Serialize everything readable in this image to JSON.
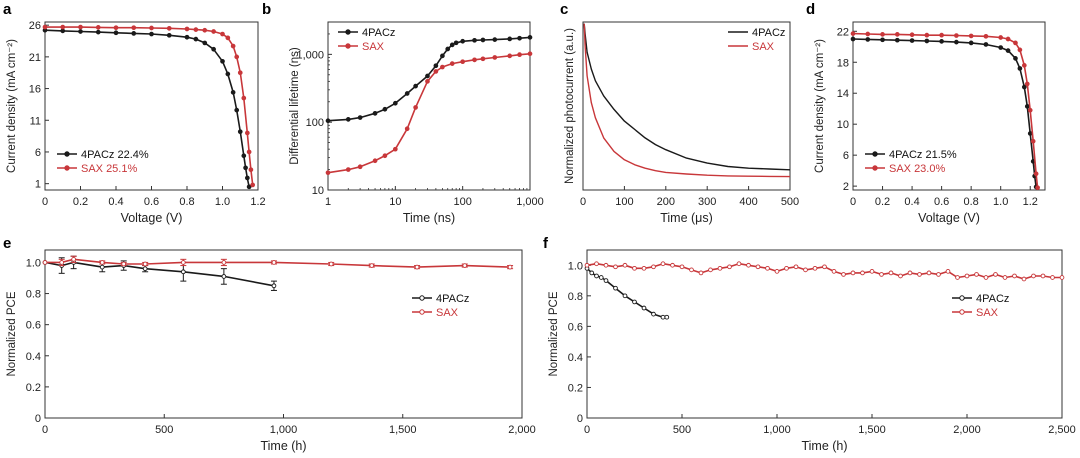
{
  "colors": {
    "black": "#1a1a1a",
    "red": "#c8373a",
    "axis": "#333333",
    "grid": "#888888"
  },
  "chart_data": [
    {
      "id": "a",
      "label": "a",
      "type": "line",
      "xlabel": "Voltage (V)",
      "ylabel": "Current density (mA cm⁻²)",
      "xlim": [
        0,
        1.2
      ],
      "ylim": [
        0,
        26.5
      ],
      "xticks": [
        {
          "v": 0,
          "t": "0"
        },
        {
          "v": 0.2,
          "t": "0.2"
        },
        {
          "v": 0.4,
          "t": "0.4"
        },
        {
          "v": 0.6,
          "t": "0.6"
        },
        {
          "v": 0.8,
          "t": "0.8"
        },
        {
          "v": 1.0,
          "t": "1.0"
        },
        {
          "v": 1.2,
          "t": "1.2"
        }
      ],
      "yticks": [
        {
          "v": 1,
          "t": "1"
        },
        {
          "v": 6,
          "t": "6"
        },
        {
          "v": 11,
          "t": "11"
        },
        {
          "v": 16,
          "t": "16"
        },
        {
          "v": 21,
          "t": "21"
        },
        {
          "v": 26,
          "t": "26"
        }
      ],
      "legend_pos": "bottom-left",
      "series": [
        {
          "name": "4PACz",
          "legend": "4PACz  22.4%",
          "color": "black",
          "x": [
            0,
            0.1,
            0.2,
            0.3,
            0.4,
            0.5,
            0.6,
            0.7,
            0.8,
            0.85,
            0.9,
            0.95,
            1.0,
            1.03,
            1.06,
            1.08,
            1.1,
            1.12,
            1.13,
            1.14,
            1.15
          ],
          "y": [
            25.2,
            25.1,
            25.0,
            24.9,
            24.8,
            24.7,
            24.6,
            24.4,
            24.1,
            23.8,
            23.2,
            22.2,
            20.3,
            18.3,
            15.4,
            12.6,
            9.2,
            5.4,
            3.5,
            1.9,
            0.5
          ]
        },
        {
          "name": "SAX",
          "legend": "SAX  25.1%",
          "color": "red",
          "x": [
            0,
            0.1,
            0.2,
            0.3,
            0.4,
            0.5,
            0.6,
            0.7,
            0.8,
            0.85,
            0.9,
            0.95,
            1.0,
            1.03,
            1.06,
            1.08,
            1.1,
            1.12,
            1.14,
            1.15,
            1.16,
            1.17
          ],
          "y": [
            25.7,
            25.7,
            25.7,
            25.65,
            25.6,
            25.6,
            25.55,
            25.5,
            25.4,
            25.3,
            25.2,
            25.0,
            24.6,
            24.0,
            22.7,
            21.0,
            18.5,
            14.5,
            9.0,
            6.0,
            3.2,
            0.8
          ]
        }
      ]
    },
    {
      "id": "b",
      "label": "b",
      "type": "line",
      "xlabel": "Time (ns)",
      "ylabel": "Differential lifetime (ns)",
      "xscale": "log",
      "yscale": "log",
      "xlim": [
        1,
        1000
      ],
      "ylim": [
        10,
        3000
      ],
      "xticks": [
        {
          "v": 1,
          "t": "1"
        },
        {
          "v": 10,
          "t": "10"
        },
        {
          "v": 100,
          "t": "100"
        },
        {
          "v": 1000,
          "t": "1,000"
        }
      ],
      "yticks": [
        {
          "v": 10,
          "t": "10"
        },
        {
          "v": 100,
          "t": "100"
        },
        {
          "v": 1000,
          "t": "1,000"
        }
      ],
      "legend_pos": "top-left",
      "series": [
        {
          "name": "4PACz",
          "legend": "4PACz",
          "color": "black",
          "x": [
            1,
            2,
            3,
            5,
            7,
            10,
            15,
            20,
            30,
            40,
            50,
            60,
            70,
            80,
            100,
            150,
            200,
            300,
            500,
            700,
            1000
          ],
          "y": [
            105,
            110,
            117,
            135,
            155,
            190,
            265,
            340,
            480,
            680,
            950,
            1200,
            1380,
            1480,
            1560,
            1610,
            1630,
            1650,
            1690,
            1730,
            1780
          ]
        },
        {
          "name": "SAX",
          "legend": "SAX",
          "color": "red",
          "x": [
            1,
            2,
            3,
            5,
            7,
            10,
            15,
            20,
            30,
            40,
            50,
            70,
            100,
            150,
            200,
            300,
            500,
            700,
            1000
          ],
          "y": [
            18,
            20,
            22,
            27,
            32,
            40,
            80,
            165,
            400,
            560,
            650,
            730,
            780,
            830,
            860,
            900,
            950,
            990,
            1020
          ]
        }
      ]
    },
    {
      "id": "c",
      "label": "c",
      "type": "line",
      "xlabel": "Time (μs)",
      "ylabel": "Normalized photocurrent (a.u.)",
      "xlim": [
        0,
        500
      ],
      "ylim": [
        0,
        1
      ],
      "xticks": [
        {
          "v": 0,
          "t": "0"
        },
        {
          "v": 100,
          "t": "100"
        },
        {
          "v": 200,
          "t": "200"
        },
        {
          "v": 300,
          "t": "300"
        },
        {
          "v": 400,
          "t": "400"
        },
        {
          "v": 500,
          "t": "500"
        }
      ],
      "yticks": [],
      "legend_pos": "top-right",
      "series": [
        {
          "name": "4PACz",
          "legend": "4PACz",
          "color": "black",
          "x": [
            3,
            5,
            10,
            20,
            30,
            50,
            75,
            100,
            125,
            150,
            175,
            200,
            250,
            300,
            350,
            400,
            450,
            500
          ],
          "y": [
            0.99,
            0.93,
            0.82,
            0.72,
            0.65,
            0.56,
            0.48,
            0.41,
            0.36,
            0.31,
            0.27,
            0.24,
            0.19,
            0.16,
            0.14,
            0.13,
            0.125,
            0.12
          ]
        },
        {
          "name": "SAX",
          "legend": "SAX",
          "color": "red",
          "x": [
            3,
            5,
            10,
            20,
            30,
            50,
            75,
            100,
            125,
            150,
            175,
            200,
            250,
            300,
            350,
            400,
            450,
            500
          ],
          "y": [
            0.99,
            0.86,
            0.68,
            0.52,
            0.43,
            0.31,
            0.23,
            0.18,
            0.15,
            0.13,
            0.115,
            0.105,
            0.095,
            0.088,
            0.084,
            0.082,
            0.081,
            0.08
          ]
        }
      ]
    },
    {
      "id": "d",
      "label": "d",
      "type": "line",
      "xlabel": "Voltage (V)",
      "ylabel": "Current density (mA cm⁻²)",
      "xlim": [
        0,
        1.3
      ],
      "ylim": [
        1.5,
        23.2
      ],
      "xticks": [
        {
          "v": 0,
          "t": "0"
        },
        {
          "v": 0.2,
          "t": "0.2"
        },
        {
          "v": 0.4,
          "t": "0.4"
        },
        {
          "v": 0.6,
          "t": "0.6"
        },
        {
          "v": 0.8,
          "t": "0.8"
        },
        {
          "v": 1.0,
          "t": "1.0"
        },
        {
          "v": 1.2,
          "t": "1.2"
        }
      ],
      "yticks": [
        {
          "v": 2,
          "t": "2"
        },
        {
          "v": 6,
          "t": "6"
        },
        {
          "v": 10,
          "t": "10"
        },
        {
          "v": 14,
          "t": "14"
        },
        {
          "v": 18,
          "t": "18"
        },
        {
          "v": 22,
          "t": "22"
        }
      ],
      "legend_pos": "bottom-left",
      "series": [
        {
          "name": "4PACz",
          "legend": "4PACz  21.5%",
          "color": "black",
          "x": [
            0,
            0.1,
            0.2,
            0.3,
            0.4,
            0.5,
            0.6,
            0.7,
            0.8,
            0.9,
            1.0,
            1.05,
            1.1,
            1.13,
            1.16,
            1.18,
            1.2,
            1.22,
            1.23,
            1.24
          ],
          "y": [
            21.0,
            20.95,
            20.9,
            20.85,
            20.8,
            20.75,
            20.7,
            20.6,
            20.5,
            20.3,
            19.9,
            19.5,
            18.5,
            17.2,
            14.8,
            12.3,
            8.8,
            5.2,
            3.3,
            1.9
          ]
        },
        {
          "name": "SAX",
          "legend": "SAX  23.0%",
          "color": "red",
          "x": [
            0,
            0.1,
            0.2,
            0.3,
            0.4,
            0.5,
            0.6,
            0.7,
            0.8,
            0.9,
            1.0,
            1.05,
            1.1,
            1.13,
            1.16,
            1.18,
            1.2,
            1.22,
            1.24,
            1.25
          ],
          "y": [
            21.7,
            21.65,
            21.6,
            21.6,
            21.55,
            21.5,
            21.5,
            21.45,
            21.4,
            21.35,
            21.2,
            21.0,
            20.5,
            19.6,
            17.6,
            15.2,
            11.8,
            7.8,
            3.6,
            1.8
          ]
        }
      ]
    },
    {
      "id": "e",
      "label": "e",
      "type": "line",
      "xlabel": "Time (h)",
      "ylabel": "Normalized PCE",
      "xlim": [
        0,
        2000
      ],
      "ylim": [
        0,
        1.08
      ],
      "xticks": [
        {
          "v": 0,
          "t": "0"
        },
        {
          "v": 500,
          "t": "500"
        },
        {
          "v": 1000,
          "t": "1,000"
        },
        {
          "v": 1500,
          "t": "1,500"
        },
        {
          "v": 2000,
          "t": "2,000"
        }
      ],
      "yticks": [
        {
          "v": 0,
          "t": "0"
        },
        {
          "v": 0.2,
          "t": "0.2"
        },
        {
          "v": 0.4,
          "t": "0.4"
        },
        {
          "v": 0.6,
          "t": "0.6"
        },
        {
          "v": 0.8,
          "t": "0.8"
        },
        {
          "v": 1.0,
          "t": "1.0"
        }
      ],
      "legend_pos": "right",
      "series": [
        {
          "name": "4PACz",
          "legend": "4PACz",
          "color": "black",
          "x": [
            0,
            70,
            120,
            240,
            330,
            420,
            580,
            750,
            960
          ],
          "y": [
            1.0,
            0.98,
            1.0,
            0.97,
            0.98,
            0.96,
            0.94,
            0.91,
            0.85
          ],
          "err": [
            0,
            0.05,
            0.04,
            0.03,
            0.03,
            0.02,
            0.06,
            0.05,
            0.03
          ]
        },
        {
          "name": "SAX",
          "legend": "SAX",
          "color": "red",
          "x": [
            0,
            70,
            120,
            240,
            330,
            420,
            580,
            750,
            960,
            1200,
            1370,
            1560,
            1760,
            1950
          ],
          "y": [
            1.0,
            1.0,
            1.02,
            1.0,
            0.99,
            0.99,
            1.0,
            1.0,
            1.0,
            0.99,
            0.98,
            0.97,
            0.98,
            0.97
          ],
          "err": [
            0,
            0.02,
            0.02,
            0.01,
            0.01,
            0.01,
            0.02,
            0.02,
            0.01,
            0.01,
            0.01,
            0.01,
            0.01,
            0.01
          ]
        }
      ]
    },
    {
      "id": "f",
      "label": "f",
      "type": "line",
      "xlabel": "Time (h)",
      "ylabel": "Normalized PCE",
      "xlim": [
        0,
        2500
      ],
      "ylim": [
        0,
        1.1
      ],
      "xticks": [
        {
          "v": 0,
          "t": "0"
        },
        {
          "v": 500,
          "t": "500"
        },
        {
          "v": 1000,
          "t": "1,000"
        },
        {
          "v": 1500,
          "t": "1,500"
        },
        {
          "v": 2000,
          "t": "2,000"
        },
        {
          "v": 2500,
          "t": "2,500"
        }
      ],
      "yticks": [
        {
          "v": 0,
          "t": "0"
        },
        {
          "v": 0.2,
          "t": "0.2"
        },
        {
          "v": 0.4,
          "t": "0.4"
        },
        {
          "v": 0.6,
          "t": "0.6"
        },
        {
          "v": 0.8,
          "t": "0.8"
        },
        {
          "v": 1.0,
          "t": "1.0"
        }
      ],
      "legend_pos": "right",
      "series": [
        {
          "name": "4PACz",
          "legend": "4PACz",
          "color": "black",
          "x": [
            0,
            25,
            50,
            75,
            100,
            150,
            200,
            250,
            300,
            350,
            400,
            420
          ],
          "y": [
            0.98,
            0.95,
            0.93,
            0.92,
            0.9,
            0.85,
            0.8,
            0.76,
            0.72,
            0.68,
            0.66,
            0.66
          ]
        },
        {
          "name": "SAX",
          "legend": "SAX",
          "color": "red",
          "x": [
            0,
            50,
            100,
            150,
            200,
            250,
            300,
            350,
            400,
            450,
            500,
            550,
            600,
            650,
            700,
            750,
            800,
            850,
            900,
            950,
            1000,
            1050,
            1100,
            1150,
            1200,
            1250,
            1300,
            1350,
            1400,
            1450,
            1500,
            1550,
            1600,
            1650,
            1700,
            1750,
            1800,
            1850,
            1900,
            1950,
            2000,
            2050,
            2100,
            2150,
            2200,
            2250,
            2300,
            2350,
            2400,
            2450,
            2500
          ],
          "y": [
            1.0,
            1.01,
            1.0,
            0.99,
            1.0,
            0.98,
            0.98,
            0.99,
            1.01,
            1.0,
            0.99,
            0.97,
            0.95,
            0.97,
            0.98,
            0.99,
            1.01,
            1.0,
            0.99,
            0.98,
            0.96,
            0.98,
            0.99,
            0.97,
            0.98,
            0.99,
            0.96,
            0.94,
            0.95,
            0.95,
            0.96,
            0.94,
            0.95,
            0.93,
            0.95,
            0.94,
            0.95,
            0.94,
            0.96,
            0.92,
            0.93,
            0.94,
            0.92,
            0.94,
            0.92,
            0.93,
            0.91,
            0.93,
            0.93,
            0.92,
            0.92
          ]
        }
      ]
    }
  ]
}
